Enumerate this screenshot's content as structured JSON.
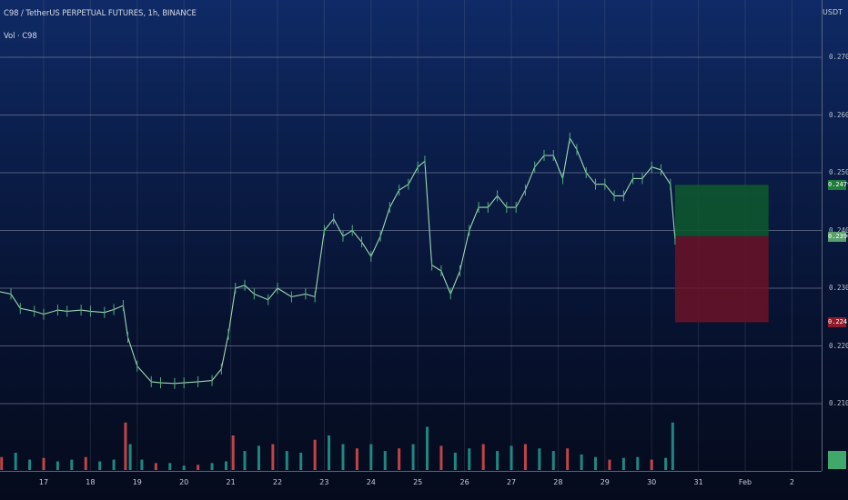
{
  "header": {
    "title": "C98 / TetherUS PERPETUAL FUTURES, 1h, BINANCE",
    "volume_label": "Vol · C98"
  },
  "axis": {
    "unit": "USDT",
    "y_ticks": [
      "0.2700",
      "0.2600",
      "0.2500",
      "0.2400",
      "0.2300",
      "0.2200",
      "0.2100"
    ],
    "x_ticks": [
      "17",
      "18",
      "19",
      "20",
      "21",
      "22",
      "23",
      "24",
      "25",
      "26",
      "27",
      "28",
      "29",
      "30",
      "31",
      "Feb",
      "2"
    ]
  },
  "price_tags": {
    "target": "0.2479",
    "current": "0.2390",
    "stop": "0.2241"
  },
  "colors": {
    "up": "#26a69a",
    "down": "#ef5350",
    "profit_zone": "#0e5a2e",
    "loss_zone": "#6b1327",
    "grid": "#8a93a8"
  },
  "chart_data": {
    "type": "line",
    "instrument": "C98 / TetherUS PERPETUAL FUTURES",
    "timeframe": "1h",
    "x_axis_labels": [
      "17",
      "18",
      "19",
      "20",
      "21",
      "22",
      "23",
      "24",
      "25",
      "26",
      "27",
      "28",
      "29",
      "30",
      "31",
      "Feb",
      "2"
    ],
    "ylim": [
      0.2035,
      0.2735
    ],
    "series": [
      {
        "name": "Close",
        "day": [
          16.0,
          16.3,
          16.5,
          16.8,
          17.0,
          17.3,
          17.5,
          17.8,
          18.0,
          18.3,
          18.5,
          18.7,
          18.8,
          19.0,
          19.3,
          19.5,
          19.8,
          20.0,
          20.3,
          20.6,
          20.8,
          20.95,
          21.1,
          21.3,
          21.5,
          21.8,
          22.0,
          22.3,
          22.6,
          22.8,
          23.0,
          23.2,
          23.4,
          23.6,
          23.8,
          24.0,
          24.2,
          24.4,
          24.6,
          24.8,
          25.0,
          25.15,
          25.3,
          25.5,
          25.7,
          25.9,
          26.1,
          26.3,
          26.5,
          26.7,
          26.9,
          27.1,
          27.3,
          27.5,
          27.7,
          27.9,
          28.1,
          28.25,
          28.4,
          28.6,
          28.8,
          29.0,
          29.2,
          29.4,
          29.6,
          29.8,
          30.0,
          30.2,
          30.4,
          30.5
        ],
        "price": [
          0.2295,
          0.229,
          0.2265,
          0.226,
          0.2255,
          0.2262,
          0.226,
          0.2262,
          0.226,
          0.2258,
          0.2263,
          0.227,
          0.2215,
          0.2165,
          0.2138,
          0.2136,
          0.2135,
          0.2136,
          0.2138,
          0.214,
          0.216,
          0.222,
          0.23,
          0.2305,
          0.229,
          0.228,
          0.23,
          0.2285,
          0.229,
          0.2285,
          0.24,
          0.242,
          0.239,
          0.24,
          0.238,
          0.2355,
          0.239,
          0.244,
          0.247,
          0.248,
          0.251,
          0.252,
          0.234,
          0.233,
          0.229,
          0.233,
          0.24,
          0.244,
          0.244,
          0.246,
          0.244,
          0.244,
          0.247,
          0.251,
          0.253,
          0.253,
          0.249,
          0.256,
          0.254,
          0.25,
          0.248,
          0.248,
          0.246,
          0.246,
          0.249,
          0.249,
          0.251,
          0.2505,
          0.248,
          0.2385
        ]
      },
      {
        "name": "Volume",
        "day": [
          16.1,
          16.4,
          16.7,
          17.0,
          17.3,
          17.6,
          17.9,
          18.2,
          18.5,
          18.75,
          18.85,
          19.1,
          19.4,
          19.7,
          20.0,
          20.3,
          20.6,
          20.9,
          21.05,
          21.3,
          21.6,
          21.9,
          22.2,
          22.5,
          22.8,
          23.1,
          23.4,
          23.7,
          24.0,
          24.3,
          24.6,
          24.9,
          25.2,
          25.5,
          25.8,
          26.1,
          26.4,
          26.7,
          27.0,
          27.3,
          27.6,
          27.9,
          28.2,
          28.5,
          28.8,
          29.1,
          29.4,
          29.7,
          30.0,
          30.3,
          30.45
        ],
        "relative": [
          0.15,
          0.2,
          0.12,
          0.14,
          0.1,
          0.12,
          0.15,
          0.1,
          0.12,
          0.55,
          0.3,
          0.12,
          0.08,
          0.08,
          0.05,
          0.06,
          0.08,
          0.1,
          0.4,
          0.22,
          0.28,
          0.3,
          0.22,
          0.2,
          0.35,
          0.4,
          0.3,
          0.25,
          0.3,
          0.22,
          0.25,
          0.3,
          0.5,
          0.28,
          0.2,
          0.25,
          0.3,
          0.22,
          0.28,
          0.3,
          0.25,
          0.22,
          0.25,
          0.18,
          0.15,
          0.12,
          0.14,
          0.15,
          0.12,
          0.14,
          0.55
        ]
      }
    ],
    "position_zones": [
      {
        "name": "profit",
        "from_price": 0.239,
        "to_price": 0.2479,
        "start_day": 30.5,
        "end_day": 32.5
      },
      {
        "name": "loss",
        "from_price": 0.2241,
        "to_price": 0.239,
        "start_day": 30.5,
        "end_day": 32.5
      }
    ],
    "xlabel": "",
    "ylabel": "",
    "grid": true,
    "legend": "top-left"
  }
}
